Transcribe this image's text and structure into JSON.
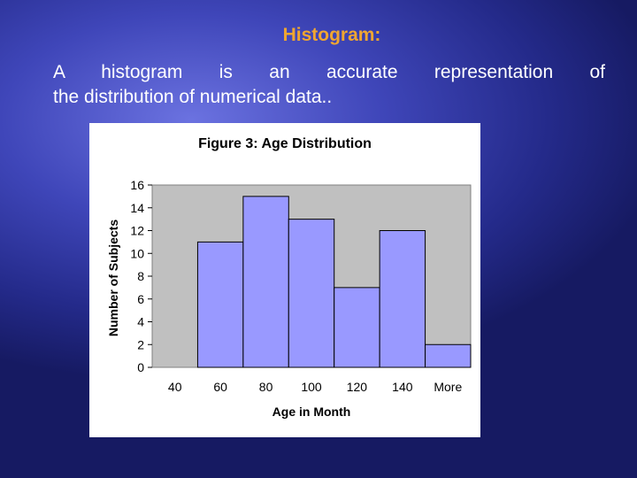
{
  "slide": {
    "title": "Histogram:",
    "body_line1": "A histogram is an accurate representation of",
    "body_line2": "the distribution of numerical data.."
  },
  "chart_data": {
    "type": "bar",
    "title": "Figure 3:  Age Distribution",
    "xlabel": "Age in Month",
    "ylabel": "Number of Subjects",
    "x_tick_labels": [
      "40",
      "60",
      "80",
      "100",
      "120",
      "140",
      "More"
    ],
    "categories": [
      "60",
      "80",
      "100",
      "120",
      "140",
      "More"
    ],
    "values": [
      11,
      15,
      13,
      7,
      12,
      2
    ],
    "ylim": [
      0,
      16
    ],
    "y_ticks": [
      0,
      2,
      4,
      6,
      8,
      10,
      12,
      14,
      16
    ],
    "grid": false,
    "legend": "none",
    "colors": {
      "bar_fill": "#9999ff",
      "bar_stroke": "#000000",
      "plot_background": "#c0c0c0"
    }
  }
}
